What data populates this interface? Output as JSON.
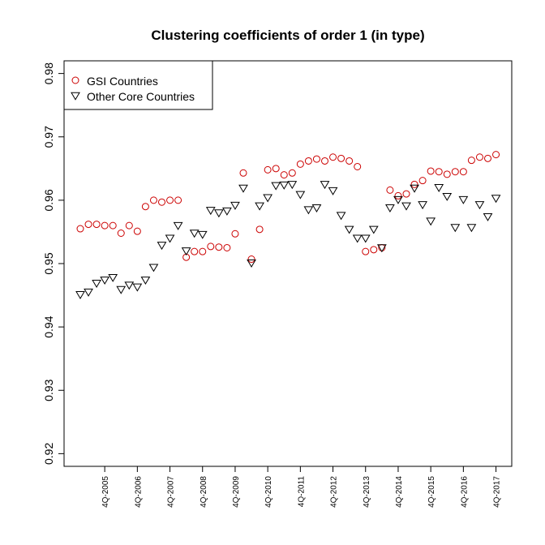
{
  "chart_data": {
    "type": "scatter",
    "title": "Clustering coefficients of order 1 (in type)",
    "xlabel": "",
    "ylabel": "",
    "ylim": [
      0.918,
      0.982
    ],
    "yticks": [
      "0.92",
      "0.93",
      "0.94",
      "0.95",
      "0.96",
      "0.97",
      "0.98"
    ],
    "xticks": [
      "4Q-2005",
      "4Q-2006",
      "4Q-2007",
      "4Q-2008",
      "4Q-2009",
      "4Q-2010",
      "4Q-2011",
      "4Q-2012",
      "4Q-2013",
      "4Q-2014",
      "4Q-2015",
      "4Q-2016",
      "4Q-2017"
    ],
    "grid": false,
    "legend_position": "top-left",
    "series": [
      {
        "name": "GSI Countries",
        "marker": "circle",
        "color": "#cc0000",
        "values": [
          0.9555,
          0.9562,
          0.9562,
          0.956,
          0.956,
          0.9548,
          0.956,
          0.9551,
          0.959,
          0.96,
          0.9597,
          0.96,
          0.96,
          0.951,
          0.9519,
          0.9519,
          0.9527,
          0.9526,
          0.9525,
          0.9547,
          0.9643,
          0.9507,
          0.9554,
          0.9648,
          0.965,
          0.964,
          0.9643,
          0.9657,
          0.9662,
          0.9665,
          0.9662,
          0.9668,
          0.9666,
          0.9662,
          0.9653,
          0.9519,
          0.9522,
          0.9525,
          0.9616,
          0.9607,
          0.961,
          0.9625,
          0.9631,
          0.9646,
          0.9645,
          0.9641,
          0.9645,
          0.9645,
          0.9663,
          0.9668,
          0.9666,
          0.9672
        ]
      },
      {
        "name": "Other Core Countries",
        "marker": "triangle-down",
        "color": "#000000",
        "values": [
          0.9451,
          0.9455,
          0.9469,
          0.9474,
          0.9478,
          0.9459,
          0.9466,
          0.9463,
          0.9474,
          0.9494,
          0.9529,
          0.954,
          0.956,
          0.952,
          0.9548,
          0.9546,
          0.9584,
          0.958,
          0.9583,
          0.9592,
          0.9619,
          0.9501,
          0.9591,
          0.9604,
          0.9623,
          0.9624,
          0.9625,
          0.9609,
          0.9585,
          0.9588,
          0.9625,
          0.9615,
          0.9576,
          0.9554,
          0.954,
          0.954,
          0.9554,
          0.9525,
          0.9588,
          0.9601,
          0.9591,
          0.9619,
          0.9593,
          0.9567,
          0.962,
          0.9606,
          0.9557,
          0.9601,
          0.9557,
          0.9593,
          0.9574,
          0.9603
        ]
      }
    ]
  }
}
